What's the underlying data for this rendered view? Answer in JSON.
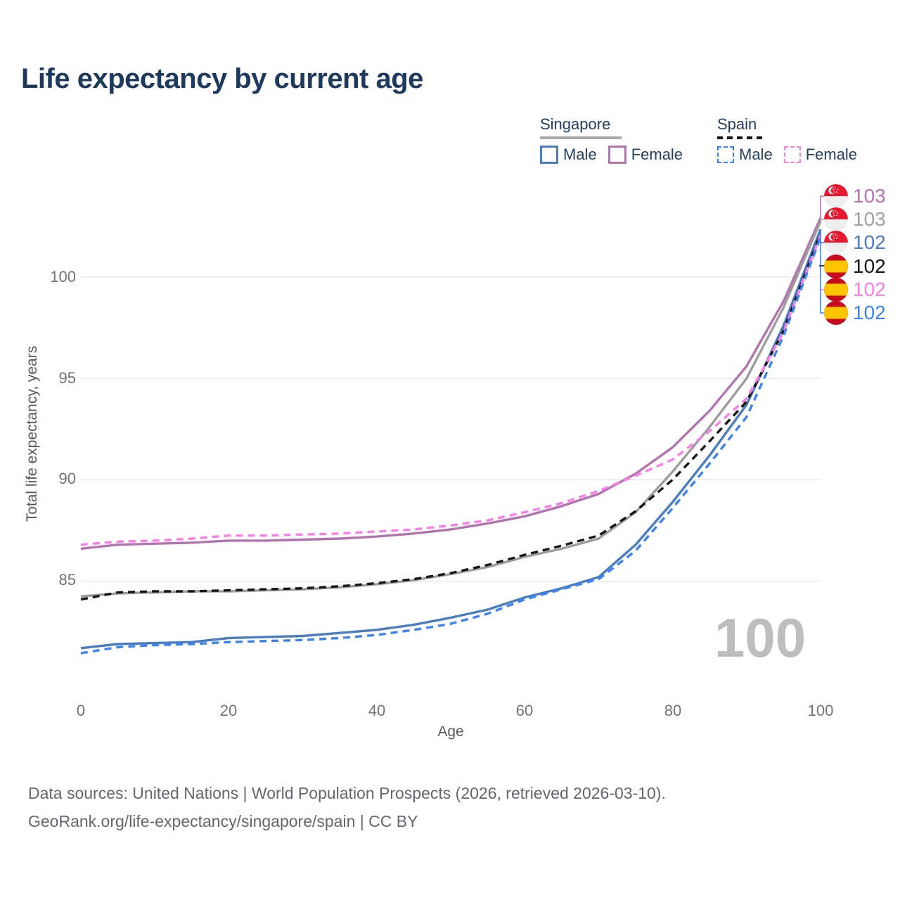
{
  "title": "Life expectancy by current age",
  "legend": {
    "groups": [
      {
        "label": "Singapore",
        "swatch_color": "#a8a8a8",
        "style": "solid",
        "items": [
          {
            "label": "Male",
            "color": "#4a7cbf",
            "dashed": false
          },
          {
            "label": "Female",
            "color": "#b273af",
            "dashed": false
          }
        ]
      },
      {
        "label": "Spain",
        "swatch_color": "#141414",
        "style": "dashed",
        "items": [
          {
            "label": "Male",
            "color": "#3d82f2",
            "dashed": true
          },
          {
            "label": "Female",
            "color": "#fb7de8",
            "dashed": true
          }
        ]
      }
    ]
  },
  "y_axis": {
    "title": "Total life expectancy, years",
    "ticks": [
      "100",
      "95",
      "90",
      "85"
    ]
  },
  "x_axis": {
    "title": "Age",
    "ticks": [
      "0",
      "20",
      "40",
      "60",
      "80",
      "100"
    ]
  },
  "end_labels": [
    {
      "series": "Singapore Female",
      "value": "103",
      "color": "#b273af",
      "flag": "singapore"
    },
    {
      "series": "Singapore",
      "value": "103",
      "color": "#a0a0a0",
      "flag": "singapore"
    },
    {
      "series": "Singapore Male",
      "value": "102",
      "color": "#4a7cbf",
      "flag": "singapore"
    },
    {
      "series": "Spain",
      "value": "102",
      "color": "#141414",
      "flag": "spain"
    },
    {
      "series": "Spain Female",
      "value": "102",
      "color": "#fb7de8",
      "flag": "spain"
    },
    {
      "series": "Spain Male",
      "value": "102",
      "color": "#3d82f2",
      "flag": "spain"
    }
  ],
  "watermark": "100",
  "footer": {
    "line1": "Data sources: United Nations | World Population Prospects (2026, retrieved 2026-03-10).",
    "line2": "GeoRank.org/life-expectancy/singapore/spain | CC BY"
  },
  "chart_data": {
    "type": "line",
    "title": "Life expectancy by current age",
    "xlabel": "Age",
    "ylabel": "Total life expectancy, years",
    "xlim": [
      0,
      100
    ],
    "ylim": [
      80.5,
      103.5
    ],
    "grid": "horizontal",
    "legend_position": "top-right",
    "x": [
      0,
      5,
      10,
      15,
      20,
      25,
      30,
      35,
      40,
      45,
      50,
      55,
      60,
      65,
      70,
      75,
      80,
      85,
      90,
      95,
      100
    ],
    "series": [
      {
        "name": "Singapore Female",
        "color": "#b273af",
        "dash": false,
        "values": [
          86.6,
          86.8,
          86.85,
          86.9,
          87.0,
          87.0,
          87.05,
          87.1,
          87.2,
          87.35,
          87.55,
          87.85,
          88.2,
          88.7,
          89.3,
          90.3,
          91.6,
          93.4,
          95.6,
          98.8,
          102.9
        ]
      },
      {
        "name": "Singapore",
        "color": "#9d9d9d",
        "dash": false,
        "values": [
          84.25,
          84.4,
          84.45,
          84.5,
          84.5,
          84.55,
          84.6,
          84.7,
          84.85,
          85.05,
          85.35,
          85.7,
          86.2,
          86.6,
          87.1,
          88.4,
          90.4,
          92.6,
          95.0,
          98.5,
          102.75
        ]
      },
      {
        "name": "Singapore Male",
        "color": "#4a7cbf",
        "dash": false,
        "values": [
          81.7,
          81.9,
          81.95,
          82.0,
          82.2,
          82.25,
          82.3,
          82.45,
          82.6,
          82.85,
          83.2,
          83.6,
          84.2,
          84.65,
          85.2,
          86.8,
          88.9,
          91.2,
          93.7,
          97.6,
          102.35
        ]
      },
      {
        "name": "Spain",
        "color": "#161616",
        "dash": true,
        "values": [
          84.1,
          84.45,
          84.5,
          84.5,
          84.55,
          84.6,
          84.65,
          84.75,
          84.9,
          85.1,
          85.4,
          85.8,
          86.3,
          86.75,
          87.25,
          88.45,
          90.0,
          91.9,
          93.85,
          97.35,
          102.15
        ]
      },
      {
        "name": "Spain Female",
        "color": "#fb7de8",
        "dash": true,
        "values": [
          86.8,
          86.95,
          87.0,
          87.1,
          87.25,
          87.25,
          87.3,
          87.35,
          87.45,
          87.55,
          87.75,
          88.0,
          88.4,
          88.85,
          89.45,
          90.2,
          91.0,
          92.4,
          94.0,
          97.3,
          102.05
        ]
      },
      {
        "name": "Spain Male",
        "color": "#3d82f2",
        "dash": true,
        "values": [
          81.45,
          81.75,
          81.85,
          81.9,
          82.0,
          82.05,
          82.1,
          82.2,
          82.35,
          82.6,
          82.9,
          83.4,
          84.1,
          84.6,
          85.1,
          86.5,
          88.6,
          90.8,
          93.1,
          97.1,
          101.95
        ]
      }
    ]
  }
}
